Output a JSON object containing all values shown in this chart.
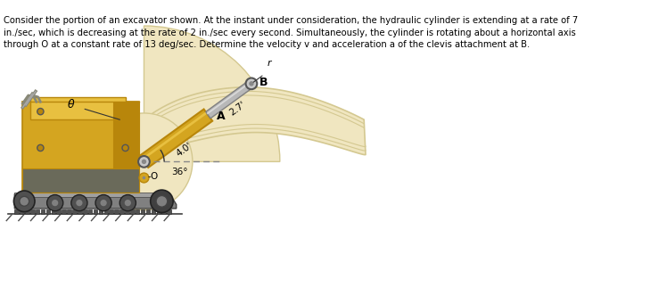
{
  "text_block": "Consider the portion of an excavator shown. At the instant under consideration, the hydraulic cylinder is extending at a rate of 7\nin./sec, which is decreasing at the rate of 2 in./sec every second. Simultaneously, the cylinder is rotating about a horizontal axis\nthrough O at a constant rate of 13 deg/sec. Determine the velocity v and acceleration a of the clevis attachment at B.",
  "label_r": "r",
  "label_B": "B",
  "label_27": "2.7'",
  "label_A": "A",
  "label_40": "4.0'",
  "label_36": "36°",
  "label_O": "O",
  "label_theta": "θ",
  "bg_color": "#ffffff",
  "body_yellow": "#d4a520",
  "body_yellow_dark": "#b8860b",
  "body_yellow_light": "#e8c040",
  "arm_beige": "#f0e6c0",
  "arm_beige_dark": "#d4c890",
  "arm_beige_mid": "#e8ddb0",
  "track_gray": "#808080",
  "track_dark": "#404040",
  "track_light": "#a0a0a0",
  "steel_gray": "#b8b8b8",
  "steel_dark": "#808080",
  "pivot_color": "#c8c8c8",
  "text_color": "#000000",
  "dashed_color": "#888888"
}
